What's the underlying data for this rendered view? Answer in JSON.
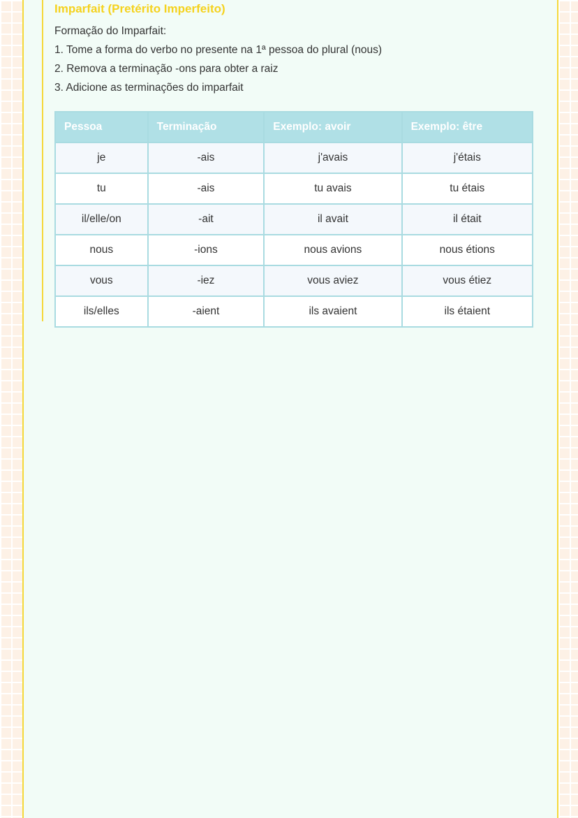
{
  "section": {
    "title": "Imparfait (Pretérito Imperfeito)",
    "lines": [
      "Formação do Imparfait:",
      "1. Tome a forma do verbo no presente na 1ª pessoa do plural (nous)",
      "2. Remova a terminação -ons para obter a raiz",
      "3. Adicione as terminações do imparfait"
    ],
    "table": {
      "headers": [
        "Pessoa",
        "Terminação",
        "Exemplo: avoir",
        "Exemplo: être"
      ],
      "rows": [
        [
          "je",
          "-ais",
          "j'avais",
          "j'étais"
        ],
        [
          "tu",
          "-ais",
          "tu avais",
          "tu étais"
        ],
        [
          "il/elle/on",
          "-ait",
          "il avait",
          "il était"
        ],
        [
          "nous",
          "-ions",
          "nous avions",
          "nous étions"
        ],
        [
          "vous",
          "-iez",
          "vous aviez",
          "vous étiez"
        ],
        [
          "ils/elles",
          "-aient",
          "ils avaient",
          "ils étaient"
        ]
      ]
    }
  },
  "colors": {
    "accent": "#f5d21e",
    "table_header": "#b0e0e6",
    "page_bg": "#f2fcf7"
  }
}
